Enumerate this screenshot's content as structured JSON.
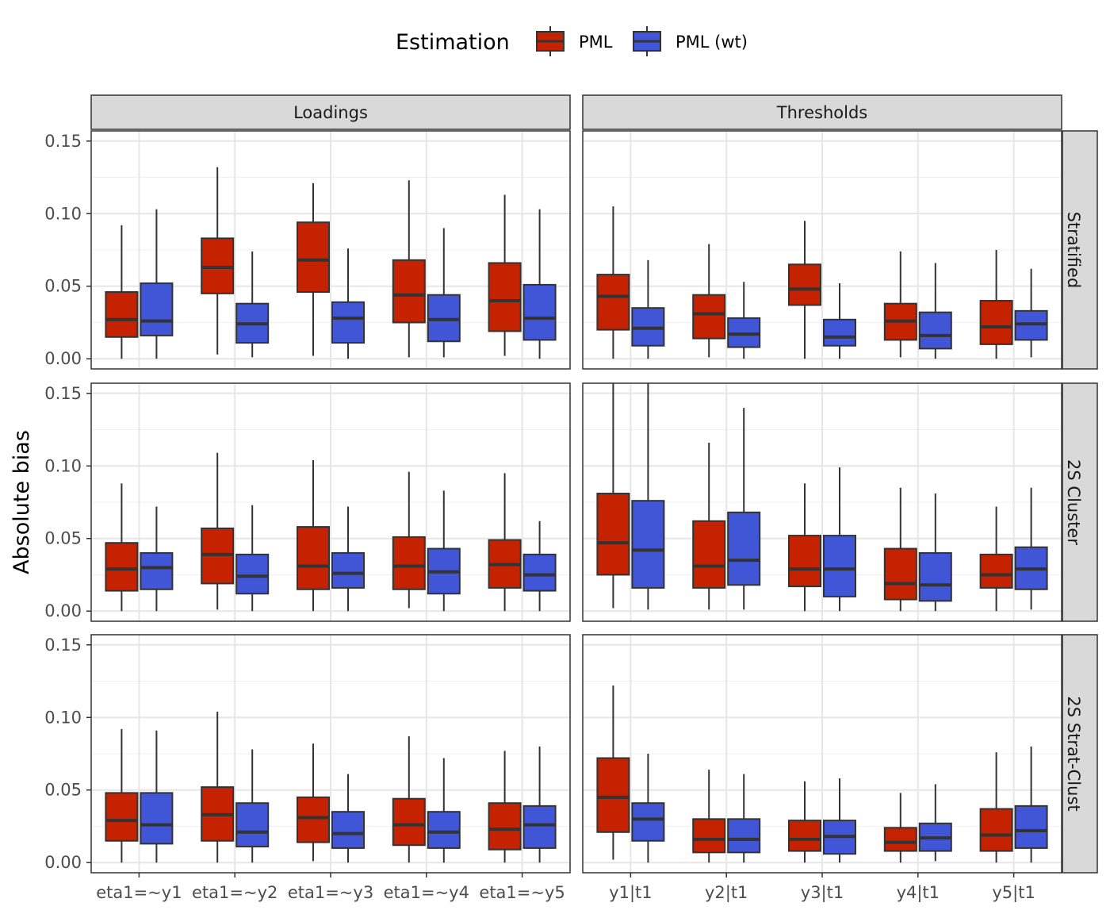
{
  "chart_data": {
    "type": "boxplot",
    "title": "",
    "ylabel": "Absolute bias",
    "xlabel": "",
    "ylim": [
      -0.007,
      0.157
    ],
    "yticks": [
      0.0,
      0.05,
      0.1,
      0.15
    ],
    "ytick_labels": [
      "0.00",
      "0.05",
      "0.10",
      "0.15"
    ],
    "grid": true,
    "legend": {
      "title": "Estimation",
      "position": "top",
      "entries": [
        {
          "name": "PML",
          "color": "#C42200"
        },
        {
          "name": "PML (wt)",
          "color": "#4056D6"
        }
      ]
    },
    "facet_columns": [
      "Loadings",
      "Thresholds"
    ],
    "facet_rows": [
      "Stratified",
      "2S Cluster",
      "2S Strat-Clust"
    ],
    "categories": {
      "Loadings": [
        "eta1=~y1",
        "eta1=~y2",
        "eta1=~y3",
        "eta1=~y4",
        "eta1=~y5"
      ],
      "Thresholds": [
        "y1|t1",
        "y2|t1",
        "y3|t1",
        "y4|t1",
        "y5|t1"
      ]
    },
    "series_order": [
      "PML",
      "PML (wt)"
    ],
    "panels": [
      {
        "row": "Stratified",
        "col": "Loadings",
        "boxes": [
          [
            [
              0.0,
              0.015,
              0.027,
              0.046,
              0.092
            ],
            [
              0.0,
              0.016,
              0.026,
              0.052,
              0.103
            ]
          ],
          [
            [
              0.003,
              0.045,
              0.063,
              0.083,
              0.132
            ],
            [
              0.001,
              0.011,
              0.024,
              0.038,
              0.074
            ]
          ],
          [
            [
              0.002,
              0.046,
              0.068,
              0.094,
              0.121
            ],
            [
              0.0,
              0.011,
              0.028,
              0.039,
              0.076
            ]
          ],
          [
            [
              0.001,
              0.025,
              0.044,
              0.068,
              0.123
            ],
            [
              0.001,
              0.012,
              0.027,
              0.044,
              0.09
            ]
          ],
          [
            [
              0.002,
              0.019,
              0.04,
              0.066,
              0.113
            ],
            [
              0.0,
              0.013,
              0.028,
              0.051,
              0.103
            ]
          ]
        ]
      },
      {
        "row": "Stratified",
        "col": "Thresholds",
        "boxes": [
          [
            [
              0.0,
              0.02,
              0.043,
              0.058,
              0.105
            ],
            [
              0.0,
              0.009,
              0.021,
              0.035,
              0.068
            ]
          ],
          [
            [
              0.001,
              0.014,
              0.031,
              0.044,
              0.079
            ],
            [
              0.0,
              0.008,
              0.017,
              0.028,
              0.053
            ]
          ],
          [
            [
              0.0,
              0.037,
              0.048,
              0.065,
              0.095
            ],
            [
              0.0,
              0.009,
              0.015,
              0.027,
              0.052
            ]
          ],
          [
            [
              0.001,
              0.013,
              0.026,
              0.038,
              0.074
            ],
            [
              0.0,
              0.007,
              0.016,
              0.032,
              0.066
            ]
          ],
          [
            [
              0.0,
              0.01,
              0.022,
              0.04,
              0.075
            ],
            [
              0.001,
              0.013,
              0.024,
              0.033,
              0.062
            ]
          ]
        ]
      },
      {
        "row": "2S Cluster",
        "col": "Loadings",
        "boxes": [
          [
            [
              0.0,
              0.014,
              0.029,
              0.047,
              0.088
            ],
            [
              0.0,
              0.015,
              0.03,
              0.04,
              0.072
            ]
          ],
          [
            [
              0.001,
              0.019,
              0.039,
              0.057,
              0.109
            ],
            [
              0.0,
              0.012,
              0.024,
              0.039,
              0.073
            ]
          ],
          [
            [
              0.0,
              0.015,
              0.031,
              0.058,
              0.104
            ],
            [
              0.0,
              0.016,
              0.026,
              0.04,
              0.072
            ]
          ],
          [
            [
              0.002,
              0.015,
              0.031,
              0.051,
              0.096
            ],
            [
              0.0,
              0.012,
              0.027,
              0.043,
              0.083
            ]
          ],
          [
            [
              0.0,
              0.016,
              0.032,
              0.049,
              0.095
            ],
            [
              0.0,
              0.014,
              0.025,
              0.039,
              0.062
            ]
          ]
        ]
      },
      {
        "row": "2S Cluster",
        "col": "Thresholds",
        "boxes": [
          [
            [
              0.002,
              0.025,
              0.047,
              0.081,
              0.157
            ],
            [
              0.001,
              0.016,
              0.042,
              0.076,
              0.157
            ]
          ],
          [
            [
              0.001,
              0.016,
              0.031,
              0.062,
              0.116
            ],
            [
              0.001,
              0.018,
              0.035,
              0.068,
              0.14
            ]
          ],
          [
            [
              0.0,
              0.017,
              0.029,
              0.052,
              0.088
            ],
            [
              0.0,
              0.01,
              0.029,
              0.052,
              0.099
            ]
          ],
          [
            [
              0.0,
              0.008,
              0.019,
              0.043,
              0.085
            ],
            [
              0.0,
              0.007,
              0.018,
              0.04,
              0.081
            ]
          ],
          [
            [
              0.0,
              0.016,
              0.025,
              0.039,
              0.072
            ],
            [
              0.001,
              0.015,
              0.029,
              0.044,
              0.085
            ]
          ]
        ]
      },
      {
        "row": "2S Strat-Clust",
        "col": "Loadings",
        "boxes": [
          [
            [
              0.0,
              0.015,
              0.029,
              0.048,
              0.092
            ],
            [
              0.0,
              0.013,
              0.026,
              0.048,
              0.091
            ]
          ],
          [
            [
              0.0,
              0.015,
              0.033,
              0.052,
              0.104
            ],
            [
              0.0,
              0.011,
              0.021,
              0.041,
              0.078
            ]
          ],
          [
            [
              0.001,
              0.014,
              0.031,
              0.045,
              0.082
            ],
            [
              0.0,
              0.01,
              0.02,
              0.035,
              0.061
            ]
          ],
          [
            [
              0.0,
              0.012,
              0.026,
              0.044,
              0.087
            ],
            [
              0.0,
              0.01,
              0.021,
              0.035,
              0.072
            ]
          ],
          [
            [
              0.0,
              0.009,
              0.023,
              0.041,
              0.077
            ],
            [
              0.0,
              0.01,
              0.026,
              0.039,
              0.08
            ]
          ]
        ]
      },
      {
        "row": "2S Strat-Clust",
        "col": "Thresholds",
        "boxes": [
          [
            [
              0.002,
              0.021,
              0.045,
              0.072,
              0.122
            ],
            [
              0.0,
              0.015,
              0.03,
              0.041,
              0.075
            ]
          ],
          [
            [
              0.0,
              0.007,
              0.016,
              0.03,
              0.064
            ],
            [
              0.0,
              0.007,
              0.016,
              0.03,
              0.061
            ]
          ],
          [
            [
              0.0,
              0.008,
              0.016,
              0.029,
              0.056
            ],
            [
              0.0,
              0.006,
              0.018,
              0.029,
              0.058
            ]
          ],
          [
            [
              0.0,
              0.008,
              0.014,
              0.024,
              0.048
            ],
            [
              0.001,
              0.008,
              0.017,
              0.027,
              0.054
            ]
          ],
          [
            [
              0.0,
              0.008,
              0.019,
              0.037,
              0.076
            ],
            [
              0.0,
              0.01,
              0.022,
              0.039,
              0.08
            ]
          ]
        ]
      }
    ]
  }
}
